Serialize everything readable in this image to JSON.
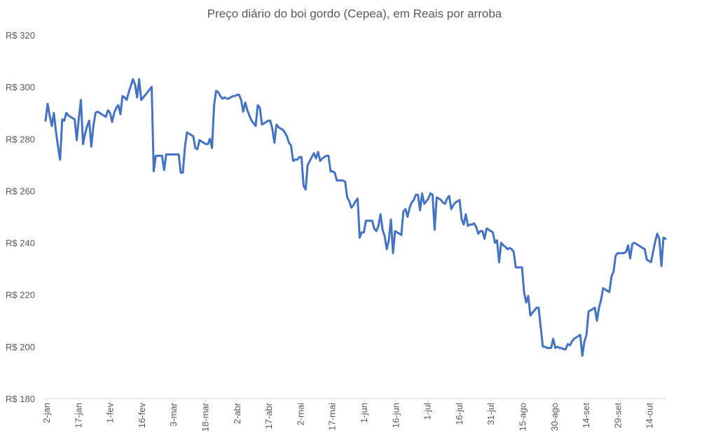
{
  "chart_data": {
    "type": "line",
    "title": "Preço diário do boi gordo (Cepea), em Reais por arroba",
    "xlabel": "",
    "ylabel": "",
    "ylim": [
      180,
      320
    ],
    "y_ticks": [
      180,
      200,
      220,
      240,
      260,
      280,
      300,
      320
    ],
    "y_tick_labels": [
      "R$ 180",
      "R$ 200",
      "R$ 220",
      "R$ 240",
      "R$ 260",
      "R$ 280",
      "R$ 300",
      "R$ 320"
    ],
    "x_tick_labels": [
      "2-jan",
      "17-jan",
      "1-fev",
      "16-fev",
      "3-mar",
      "18-mar",
      "2-abr",
      "17-abr",
      "2-mai",
      "17-mai",
      "1-jun",
      "16-jun",
      "1-jul",
      "16-jul",
      "31-jul",
      "15-ago",
      "30-ago",
      "14-set",
      "29-set",
      "14-out"
    ],
    "grid": false,
    "legend": "none",
    "line_color": "#4472c4",
    "series": [
      {
        "values": [
          287,
          293.5,
          289,
          285,
          290,
          283,
          277,
          272,
          287.5,
          287,
          290,
          289,
          288.5,
          288,
          287.5,
          279.5,
          288,
          295,
          278,
          282,
          285,
          287,
          277,
          285,
          290,
          290.5,
          290,
          289.5,
          289,
          288.5,
          291,
          290,
          286.5,
          290,
          292,
          293,
          289.5,
          296.5,
          296,
          295,
          298,
          300.5,
          303,
          301,
          296,
          303,
          295,
          296,
          297,
          298,
          299,
          300,
          267.5,
          273.5,
          273.5,
          273.5,
          273.5,
          268,
          274,
          274,
          274,
          274,
          274,
          274,
          274,
          267,
          267,
          277,
          282.5,
          282,
          281.5,
          281,
          276.5,
          276,
          279.5,
          279,
          278.5,
          278,
          278,
          280,
          276.5,
          293,
          298.5,
          298,
          296.5,
          295.5,
          296,
          295.5,
          295.5,
          296,
          296.5,
          296.5,
          297,
          297,
          295,
          290.5,
          294,
          291,
          289,
          287,
          286,
          285,
          293,
          292,
          285.5,
          286,
          286.5,
          287,
          287,
          284,
          278.5,
          285.5,
          284.5,
          284,
          283.5,
          282.5,
          281,
          278.5,
          277.5,
          271.5,
          272,
          272,
          273,
          273,
          262,
          260.5,
          270,
          271.5,
          273,
          274.5,
          272.5,
          275,
          271.5,
          272.5,
          273,
          273.5,
          273.5,
          267.5,
          267.5,
          267,
          264,
          264,
          264,
          264,
          263.5,
          257.5,
          256,
          253.5,
          254.5,
          256,
          257,
          242,
          244,
          244,
          248.5,
          248.5,
          248.5,
          248.5,
          245.5,
          244.5,
          246.5,
          251,
          245,
          242.5,
          237.5,
          241,
          249,
          236,
          244.5,
          244,
          243.5,
          243,
          252,
          253,
          250,
          253.5,
          255.5,
          256.5,
          258.5,
          258.5,
          252.5,
          259,
          255,
          256,
          257,
          259,
          258.5,
          245,
          257.5,
          257,
          256.5,
          255.5,
          255,
          257,
          258,
          253,
          254.5,
          255.5,
          256,
          256.5,
          249,
          247,
          251,
          246.5,
          247,
          247,
          247.5,
          246,
          243.5,
          244.5,
          244.5,
          241.5,
          245.5,
          245,
          244.5,
          244,
          240,
          241,
          232.5,
          240,
          239,
          238.5,
          237.5,
          238,
          237.5,
          236.5,
          230.5,
          230.5,
          230.5,
          230.5,
          221,
          217,
          219.5,
          212,
          213,
          214,
          215,
          215,
          207.5,
          200,
          200,
          199.5,
          199.5,
          199.5,
          203,
          199.5,
          200,
          199.5,
          199.5,
          199,
          199,
          201,
          200.5,
          202,
          203,
          203.5,
          204,
          204.5,
          196.5,
          202,
          204.5,
          213.5,
          214,
          214.5,
          215,
          210,
          215,
          218,
          222.5,
          222,
          221.5,
          221,
          227,
          229,
          235,
          236,
          236,
          236,
          236,
          236.5,
          239,
          234,
          239.5,
          240,
          239.5,
          239,
          238.5,
          238,
          237.5,
          233.5,
          233,
          232.5,
          236.5,
          240.5,
          243.5,
          241.5,
          231,
          242,
          241.5
        ]
      }
    ]
  }
}
